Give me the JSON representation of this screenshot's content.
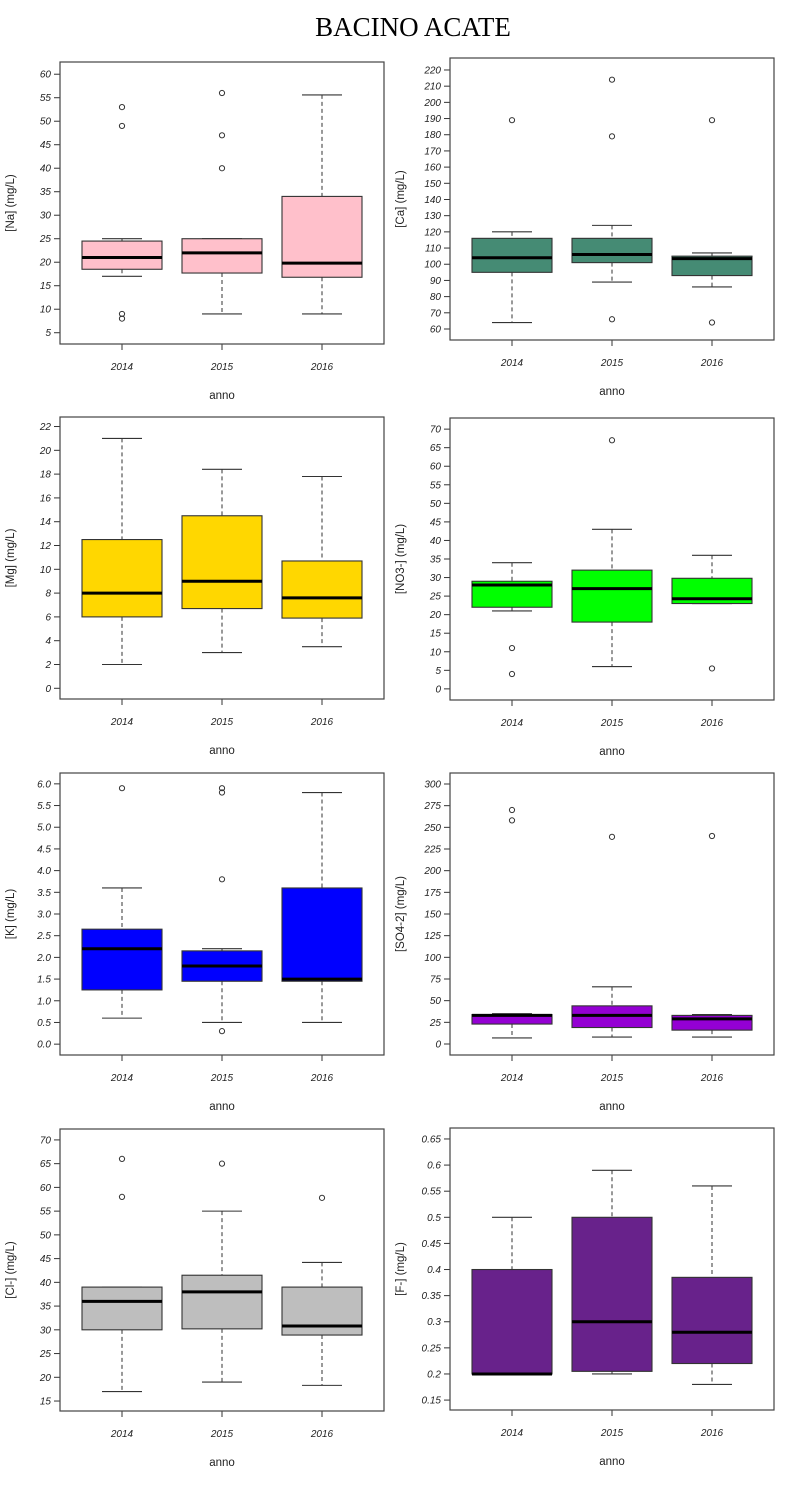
{
  "title": "BACINO ACATE",
  "chart_data": [
    {
      "type": "boxplot",
      "id": "na",
      "ylabel": "[Na] (mg/L)",
      "xlabel": "anno",
      "fill": "#FFC0CB",
      "categories": [
        "2014",
        "2015",
        "2016"
      ],
      "ylim": [
        2.6,
        62.6
      ],
      "yticks": [
        5,
        10,
        15,
        20,
        25,
        30,
        35,
        40,
        45,
        50,
        55,
        60
      ],
      "ytick_labels": [
        "5",
        "10",
        "15",
        "20",
        "25",
        "30",
        "35",
        "40",
        "45",
        "50",
        "55",
        "60"
      ],
      "boxes": [
        {
          "whisker_low": 17,
          "q1": 18.5,
          "median": 21,
          "q3": 24.5,
          "whisker_high": 25,
          "outliers": [
            53,
            49,
            9,
            8
          ]
        },
        {
          "whisker_low": 9,
          "q1": 17.7,
          "median": 22,
          "q3": 25,
          "whisker_high": 25,
          "outliers": [
            56,
            47,
            40
          ]
        },
        {
          "whisker_low": 9,
          "q1": 16.8,
          "median": 19.8,
          "q3": 34,
          "whisker_high": 55.6,
          "outliers": []
        }
      ]
    },
    {
      "type": "boxplot",
      "id": "ca",
      "ylabel": "[Ca] (mg/L)",
      "xlabel": "anno",
      "fill": "#458B74",
      "categories": [
        "2014",
        "2015",
        "2016"
      ],
      "ylim": [
        53.2,
        227.4
      ],
      "yticks": [
        60,
        70,
        80,
        90,
        100,
        110,
        120,
        130,
        140,
        150,
        160,
        170,
        180,
        190,
        200,
        210,
        220
      ],
      "ytick_labels": [
        "60",
        "70",
        "80",
        "90",
        "100",
        "110",
        "120",
        "130",
        "140",
        "150",
        "160",
        "170",
        "180",
        "190",
        "200",
        "210",
        "220"
      ],
      "boxes": [
        {
          "whisker_low": 64,
          "q1": 95,
          "median": 104,
          "q3": 116,
          "whisker_high": 120,
          "outliers": [
            189
          ]
        },
        {
          "whisker_low": 89,
          "q1": 101,
          "median": 106,
          "q3": 116,
          "whisker_high": 124,
          "outliers": [
            214,
            179,
            66
          ]
        },
        {
          "whisker_low": 86,
          "q1": 93,
          "median": 103.5,
          "q3": 105,
          "whisker_high": 107,
          "outliers": [
            189,
            64
          ]
        }
      ]
    },
    {
      "type": "boxplot",
      "id": "mg",
      "ylabel": "[Mg] (mg/L)",
      "xlabel": "anno",
      "fill": "#FFD700",
      "categories": [
        "2014",
        "2015",
        "2016"
      ],
      "ylim": [
        -0.9,
        22.8
      ],
      "yticks": [
        0,
        2,
        4,
        6,
        8,
        10,
        12,
        14,
        16,
        18,
        20,
        22
      ],
      "ytick_labels": [
        "0",
        "2",
        "4",
        "6",
        "8",
        "10",
        "12",
        "14",
        "16",
        "18",
        "20",
        "22"
      ],
      "boxes": [
        {
          "whisker_low": 2,
          "q1": 6,
          "median": 8,
          "q3": 12.5,
          "whisker_high": 21,
          "outliers": []
        },
        {
          "whisker_low": 3,
          "q1": 6.7,
          "median": 9,
          "q3": 14.5,
          "whisker_high": 18.4,
          "outliers": []
        },
        {
          "whisker_low": 3.5,
          "q1": 5.9,
          "median": 7.6,
          "q3": 10.7,
          "whisker_high": 17.8,
          "outliers": []
        }
      ]
    },
    {
      "type": "boxplot",
      "id": "no3",
      "ylabel": "[NO3-] (mg/L)",
      "xlabel": "anno",
      "fill": "#00FF00",
      "categories": [
        "2014",
        "2015",
        "2016"
      ],
      "ylim": [
        -3,
        73
      ],
      "yticks": [
        0,
        5,
        10,
        15,
        20,
        25,
        30,
        35,
        40,
        45,
        50,
        55,
        60,
        65,
        70
      ],
      "ytick_labels": [
        "0",
        "5",
        "10",
        "15",
        "20",
        "25",
        "30",
        "35",
        "40",
        "45",
        "50",
        "55",
        "60",
        "65",
        "70"
      ],
      "boxes": [
        {
          "whisker_low": 21,
          "q1": 22,
          "median": 28,
          "q3": 29,
          "whisker_high": 34,
          "outliers": [
            11,
            4
          ]
        },
        {
          "whisker_low": 6,
          "q1": 18,
          "median": 27,
          "q3": 32,
          "whisker_high": 43,
          "outliers": [
            67
          ]
        },
        {
          "whisker_low": 23,
          "q1": 23,
          "median": 24.3,
          "q3": 29.8,
          "whisker_high": 36,
          "outliers": [
            5.5
          ]
        }
      ]
    },
    {
      "type": "boxplot",
      "id": "k",
      "ylabel": "[K] (mg/L)",
      "xlabel": "anno",
      "fill": "#0000FF",
      "categories": [
        "2014",
        "2015",
        "2016"
      ],
      "ylim": [
        -0.25,
        6.25
      ],
      "yticks": [
        0,
        0.5,
        1,
        1.5,
        2,
        2.5,
        3,
        3.5,
        4,
        4.5,
        5,
        5.5,
        6
      ],
      "ytick_labels": [
        "0.0",
        "0.5",
        "1.0",
        "1.5",
        "2.0",
        "2.5",
        "3.0",
        "3.5",
        "4.0",
        "4.5",
        "5.0",
        "5.5",
        "6.0"
      ],
      "boxes": [
        {
          "whisker_low": 0.6,
          "q1": 1.25,
          "median": 2.2,
          "q3": 2.65,
          "whisker_high": 3.6,
          "outliers": [
            5.9
          ]
        },
        {
          "whisker_low": 0.5,
          "q1": 1.45,
          "median": 1.8,
          "q3": 2.15,
          "whisker_high": 2.2,
          "outliers": [
            5.9,
            5.8,
            3.8,
            0.3
          ]
        },
        {
          "whisker_low": 0.5,
          "q1": 1.45,
          "median": 1.5,
          "q3": 3.6,
          "whisker_high": 5.8,
          "outliers": []
        }
      ]
    },
    {
      "type": "boxplot",
      "id": "so4",
      "ylabel": "[SO4-2] (mg/L)",
      "xlabel": "anno",
      "fill": "#9400D3",
      "categories": [
        "2014",
        "2015",
        "2016"
      ],
      "ylim": [
        -12.7,
        312.7
      ],
      "yticks": [
        0,
        25,
        50,
        75,
        100,
        125,
        150,
        175,
        200,
        225,
        250,
        275,
        300
      ],
      "ytick_labels": [
        "0",
        "25",
        "50",
        "75",
        "100",
        "125",
        "150",
        "175",
        "200",
        "225",
        "250",
        "275",
        "300"
      ],
      "boxes": [
        {
          "whisker_low": 7,
          "q1": 23,
          "median": 33,
          "q3": 34,
          "whisker_high": 35,
          "outliers": [
            270,
            258
          ]
        },
        {
          "whisker_low": 8,
          "q1": 19,
          "median": 33,
          "q3": 44,
          "whisker_high": 66,
          "outliers": [
            239
          ]
        },
        {
          "whisker_low": 8,
          "q1": 16,
          "median": 29,
          "q3": 33,
          "whisker_high": 34,
          "outliers": [
            240
          ]
        }
      ]
    },
    {
      "type": "boxplot",
      "id": "cl",
      "ylabel": "[Cl-] (mg/L)",
      "xlabel": "anno",
      "fill": "#BEBEBE",
      "categories": [
        "2014",
        "2015",
        "2016"
      ],
      "ylim": [
        12.9,
        72.3
      ],
      "yticks": [
        15,
        20,
        25,
        30,
        35,
        40,
        45,
        50,
        55,
        60,
        65,
        70
      ],
      "ytick_labels": [
        "15",
        "20",
        "25",
        "30",
        "35",
        "40",
        "45",
        "50",
        "55",
        "60",
        "65",
        "70"
      ],
      "boxes": [
        {
          "whisker_low": 17,
          "q1": 30,
          "median": 36,
          "q3": 39,
          "whisker_high": 39,
          "outliers": [
            66,
            58
          ]
        },
        {
          "whisker_low": 19,
          "q1": 30.2,
          "median": 38,
          "q3": 41.5,
          "whisker_high": 55,
          "outliers": [
            65
          ]
        },
        {
          "whisker_low": 18.3,
          "q1": 28.9,
          "median": 30.8,
          "q3": 39,
          "whisker_high": 44.2,
          "outliers": [
            57.8
          ]
        }
      ]
    },
    {
      "type": "boxplot",
      "id": "f",
      "ylabel": "[F-] (mg/L)",
      "xlabel": "anno",
      "fill": "#68228B",
      "categories": [
        "2014",
        "2015",
        "2016"
      ],
      "ylim": [
        0.131,
        0.671
      ],
      "yticks": [
        0.15,
        0.2,
        0.25,
        0.3,
        0.35,
        0.4,
        0.45,
        0.5,
        0.55,
        0.6,
        0.65
      ],
      "ytick_labels": [
        "0.15",
        "0.2",
        "0.25",
        "0.3",
        "0.35",
        "0.4",
        "0.45",
        "0.5",
        "0.55",
        "0.6",
        "0.65"
      ],
      "boxes": [
        {
          "whisker_low": 0.2,
          "q1": 0.2,
          "median": 0.2,
          "q3": 0.4,
          "whisker_high": 0.5,
          "outliers": []
        },
        {
          "whisker_low": 0.2,
          "q1": 0.205,
          "median": 0.3,
          "q3": 0.5,
          "whisker_high": 0.59,
          "outliers": []
        },
        {
          "whisker_low": 0.18,
          "q1": 0.22,
          "median": 0.28,
          "q3": 0.385,
          "whisker_high": 0.56,
          "outliers": []
        }
      ]
    }
  ]
}
